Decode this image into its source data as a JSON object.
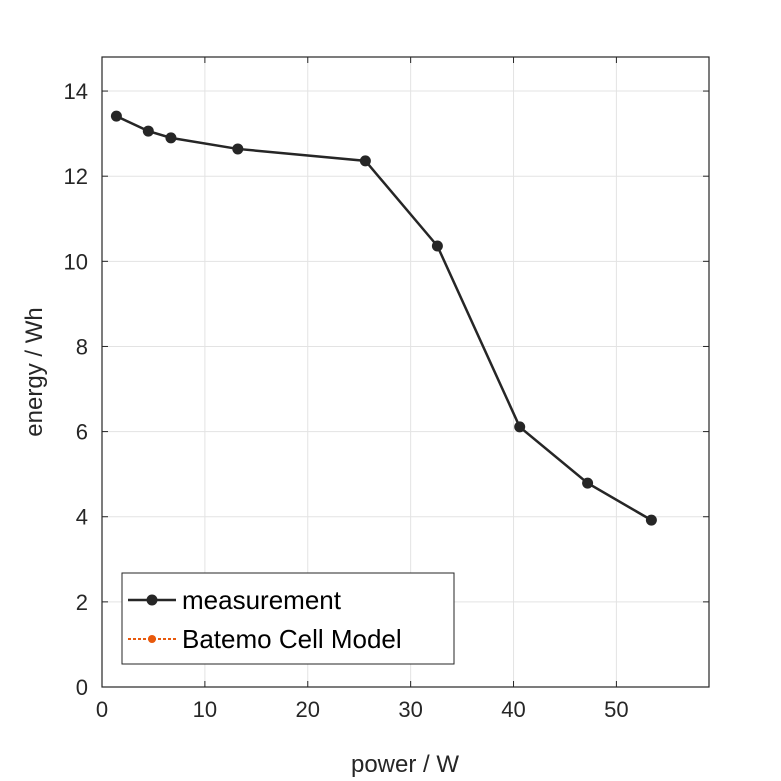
{
  "chart_data": {
    "type": "line",
    "title": "",
    "xlabel": "power / W",
    "ylabel": "energy / Wh",
    "xlim": [
      0,
      59
    ],
    "ylim": [
      0,
      14.8
    ],
    "xticks": [
      0,
      10,
      20,
      30,
      40,
      50
    ],
    "yticks": [
      0,
      2,
      4,
      6,
      8,
      10,
      12,
      14
    ],
    "grid": true,
    "legend_position": "bottom-left",
    "series": [
      {
        "name": "measurement",
        "color": "#262626",
        "style": "solid",
        "marker": "circle",
        "x": [
          1.4,
          4.5,
          6.7,
          13.2,
          25.6,
          32.6,
          40.6,
          47.2,
          53.4
        ],
        "y": [
          13.41,
          13.06,
          12.9,
          12.64,
          12.36,
          10.36,
          6.11,
          4.79,
          3.92
        ]
      },
      {
        "name": "Batemo Cell Model",
        "color": "#e8590c",
        "style": "dotted",
        "marker": "circle",
        "x": [],
        "y": []
      }
    ]
  }
}
